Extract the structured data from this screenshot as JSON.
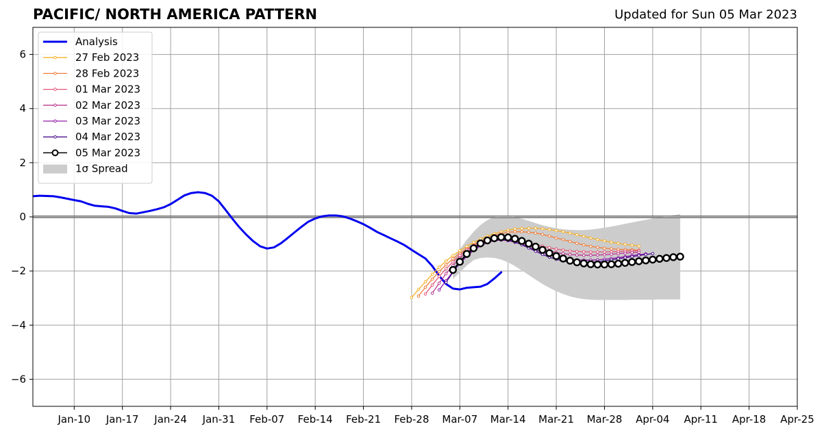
{
  "chart_data": {
    "type": "line",
    "title": "PACIFIC/ NORTH AMERICA PATTERN",
    "subtitle": "Updated for Sun 05 Mar 2023",
    "xlabel": "",
    "ylabel": "",
    "xlim": [
      "2023-01-04",
      "2023-04-25"
    ],
    "ylim": [
      -7,
      7
    ],
    "x_ticks": [
      "2023-01-10",
      "2023-01-17",
      "2023-01-24",
      "2023-01-31",
      "2023-02-07",
      "2023-02-14",
      "2023-02-21",
      "2023-02-28",
      "2023-03-07",
      "2023-03-14",
      "2023-03-21",
      "2023-03-28",
      "2023-04-04",
      "2023-04-11",
      "2023-04-18",
      "2023-04-25"
    ],
    "x_tick_labels": [
      "Jan-10",
      "Jan-17",
      "Jan-24",
      "Jan-31",
      "Feb-07",
      "Feb-14",
      "Feb-21",
      "Feb-28",
      "Mar-07",
      "Mar-14",
      "Mar-21",
      "Mar-28",
      "Apr-04",
      "Apr-11",
      "Apr-18",
      "Apr-25"
    ],
    "y_ticks": [
      -6,
      -4,
      -2,
      0,
      2,
      4,
      6
    ],
    "y_tick_labels": [
      "−6",
      "−4",
      "−2",
      "0",
      "2",
      "4",
      "6"
    ],
    "grid": true,
    "legend_position": "upper-left",
    "zero_line": true,
    "analysis": {
      "name": "Analysis",
      "color": "#0000ee",
      "start": "2023-01-04",
      "values": [
        0.76,
        0.78,
        0.77,
        0.76,
        0.72,
        0.67,
        0.62,
        0.57,
        0.48,
        0.41,
        0.39,
        0.37,
        0.31,
        0.22,
        0.14,
        0.12,
        0.17,
        0.22,
        0.28,
        0.35,
        0.47,
        0.63,
        0.79,
        0.88,
        0.91,
        0.88,
        0.78,
        0.57,
        0.25,
        -0.08,
        -0.39,
        -0.66,
        -0.9,
        -1.09,
        -1.17,
        -1.13,
        -0.98,
        -0.78,
        -0.57,
        -0.37,
        -0.18,
        -0.06,
        0.02,
        0.05,
        0.05,
        0.02,
        -0.06,
        -0.16,
        -0.27,
        -0.41,
        -0.56,
        -0.68,
        -0.8,
        -0.92,
        -1.05,
        -1.22,
        -1.38,
        -1.54,
        -1.82,
        -2.18,
        -2.48,
        -2.65,
        -2.68,
        -2.62,
        -2.6,
        -2.58,
        -2.48,
        -2.28,
        -2.05
      ]
    },
    "forecasts": [
      {
        "name": "27 Feb 2023",
        "color": "#f4b02a",
        "start": "2023-02-28",
        "values": [
          -2.98,
          -2.68,
          -2.4,
          -2.12,
          -1.86,
          -1.63,
          -1.43,
          -1.25,
          -1.09,
          -0.94,
          -0.82,
          -0.71,
          -0.62,
          -0.55,
          -0.49,
          -0.45,
          -0.43,
          -0.42,
          -0.42,
          -0.44,
          -0.47,
          -0.51,
          -0.55,
          -0.6,
          -0.66,
          -0.72,
          -0.78,
          -0.84,
          -0.89,
          -0.94,
          -0.98,
          -1.02,
          -1.05,
          -1.08
        ]
      },
      {
        "name": "28 Feb 2023",
        "color": "#f07d3a",
        "start": "2023-03-01",
        "values": [
          -2.93,
          -2.6,
          -2.3,
          -2.02,
          -1.77,
          -1.55,
          -1.35,
          -1.18,
          -1.03,
          -0.9,
          -0.78,
          -0.69,
          -0.62,
          -0.57,
          -0.55,
          -0.55,
          -0.57,
          -0.6,
          -0.65,
          -0.71,
          -0.78,
          -0.84,
          -0.91,
          -0.98,
          -1.04,
          -1.09,
          -1.13,
          -1.16,
          -1.18,
          -1.2,
          -1.21,
          -1.22,
          -1.23
        ]
      },
      {
        "name": "01 Mar 2023",
        "color": "#e0567a",
        "start": "2023-03-02",
        "values": [
          -2.85,
          -2.52,
          -2.2,
          -1.92,
          -1.66,
          -1.42,
          -1.22,
          -1.06,
          -0.93,
          -0.84,
          -0.79,
          -0.77,
          -0.78,
          -0.82,
          -0.88,
          -0.95,
          -1.02,
          -1.08,
          -1.14,
          -1.19,
          -1.23,
          -1.26,
          -1.28,
          -1.29,
          -1.3,
          -1.3,
          -1.3,
          -1.29,
          -1.28,
          -1.27,
          -1.26,
          -1.25
        ]
      },
      {
        "name": "02 Mar 2023",
        "color": "#b8378f",
        "start": "2023-03-03",
        "values": [
          -2.82,
          -2.45,
          -2.1,
          -1.8,
          -1.53,
          -1.3,
          -1.12,
          -0.98,
          -0.89,
          -0.84,
          -0.83,
          -0.86,
          -0.91,
          -0.98,
          -1.06,
          -1.14,
          -1.21,
          -1.27,
          -1.32,
          -1.36,
          -1.39,
          -1.41,
          -1.42,
          -1.42,
          -1.41,
          -1.4,
          -1.38,
          -1.36,
          -1.34,
          -1.32,
          -1.31
        ]
      },
      {
        "name": "03 Mar 2023",
        "color": "#8d1aa3",
        "start": "2023-03-04",
        "values": [
          -2.7,
          -2.36,
          -2.02,
          -1.72,
          -1.46,
          -1.24,
          -1.07,
          -0.95,
          -0.88,
          -0.86,
          -0.88,
          -0.94,
          -1.02,
          -1.12,
          -1.22,
          -1.32,
          -1.41,
          -1.48,
          -1.53,
          -1.57,
          -1.59,
          -1.6,
          -1.6,
          -1.59,
          -1.57,
          -1.54,
          -1.51,
          -1.47,
          -1.43,
          -1.4,
          -1.37
        ]
      },
      {
        "name": "04 Mar 2023",
        "color": "#4a0e8f",
        "start": "2023-03-05",
        "values": [
          -2.42,
          -2.05,
          -1.7,
          -1.42,
          -1.19,
          -1.02,
          -0.9,
          -0.84,
          -0.83,
          -0.86,
          -0.93,
          -1.03,
          -1.15,
          -1.27,
          -1.39,
          -1.49,
          -1.57,
          -1.63,
          -1.67,
          -1.69,
          -1.69,
          -1.68,
          -1.66,
          -1.63,
          -1.59,
          -1.55,
          -1.51,
          -1.47,
          -1.43,
          -1.39,
          -1.36
        ]
      },
      {
        "name": "05 Mar 2023",
        "color": "#000000",
        "start": "2023-03-06",
        "values": [
          -1.96,
          -1.66,
          -1.37,
          -1.16,
          -0.98,
          -0.87,
          -0.79,
          -0.75,
          -0.76,
          -0.81,
          -0.89,
          -0.99,
          -1.1,
          -1.22,
          -1.34,
          -1.45,
          -1.54,
          -1.62,
          -1.68,
          -1.72,
          -1.75,
          -1.76,
          -1.76,
          -1.75,
          -1.73,
          -1.7,
          -1.67,
          -1.64,
          -1.61,
          -1.58,
          -1.55,
          -1.52,
          -1.49,
          -1.47
        ]
      }
    ],
    "spread": {
      "name": "1σ Spread",
      "color": "#cccccc",
      "start": "2023-03-06",
      "upper": [
        -1.55,
        -1.2,
        -0.85,
        -0.55,
        -0.3,
        -0.12,
        0.0,
        0.04,
        0.04,
        0.0,
        -0.07,
        -0.15,
        -0.23,
        -0.31,
        -0.37,
        -0.42,
        -0.46,
        -0.48,
        -0.49,
        -0.49,
        -0.47,
        -0.44,
        -0.4,
        -0.36,
        -0.31,
        -0.26,
        -0.21,
        -0.16,
        -0.11,
        -0.06,
        -0.02,
        0.02,
        0.06,
        0.1
      ],
      "lower": [
        -2.3,
        -2.05,
        -1.8,
        -1.6,
        -1.52,
        -1.5,
        -1.52,
        -1.58,
        -1.68,
        -1.82,
        -1.98,
        -2.15,
        -2.32,
        -2.48,
        -2.62,
        -2.75,
        -2.85,
        -2.94,
        -3.0,
        -3.04,
        -3.06,
        -3.07,
        -3.07,
        -3.07,
        -3.07,
        -3.07,
        -3.06,
        -3.06,
        -3.06,
        -3.06,
        -3.05,
        -3.05,
        -3.05,
        -3.05
      ]
    }
  }
}
